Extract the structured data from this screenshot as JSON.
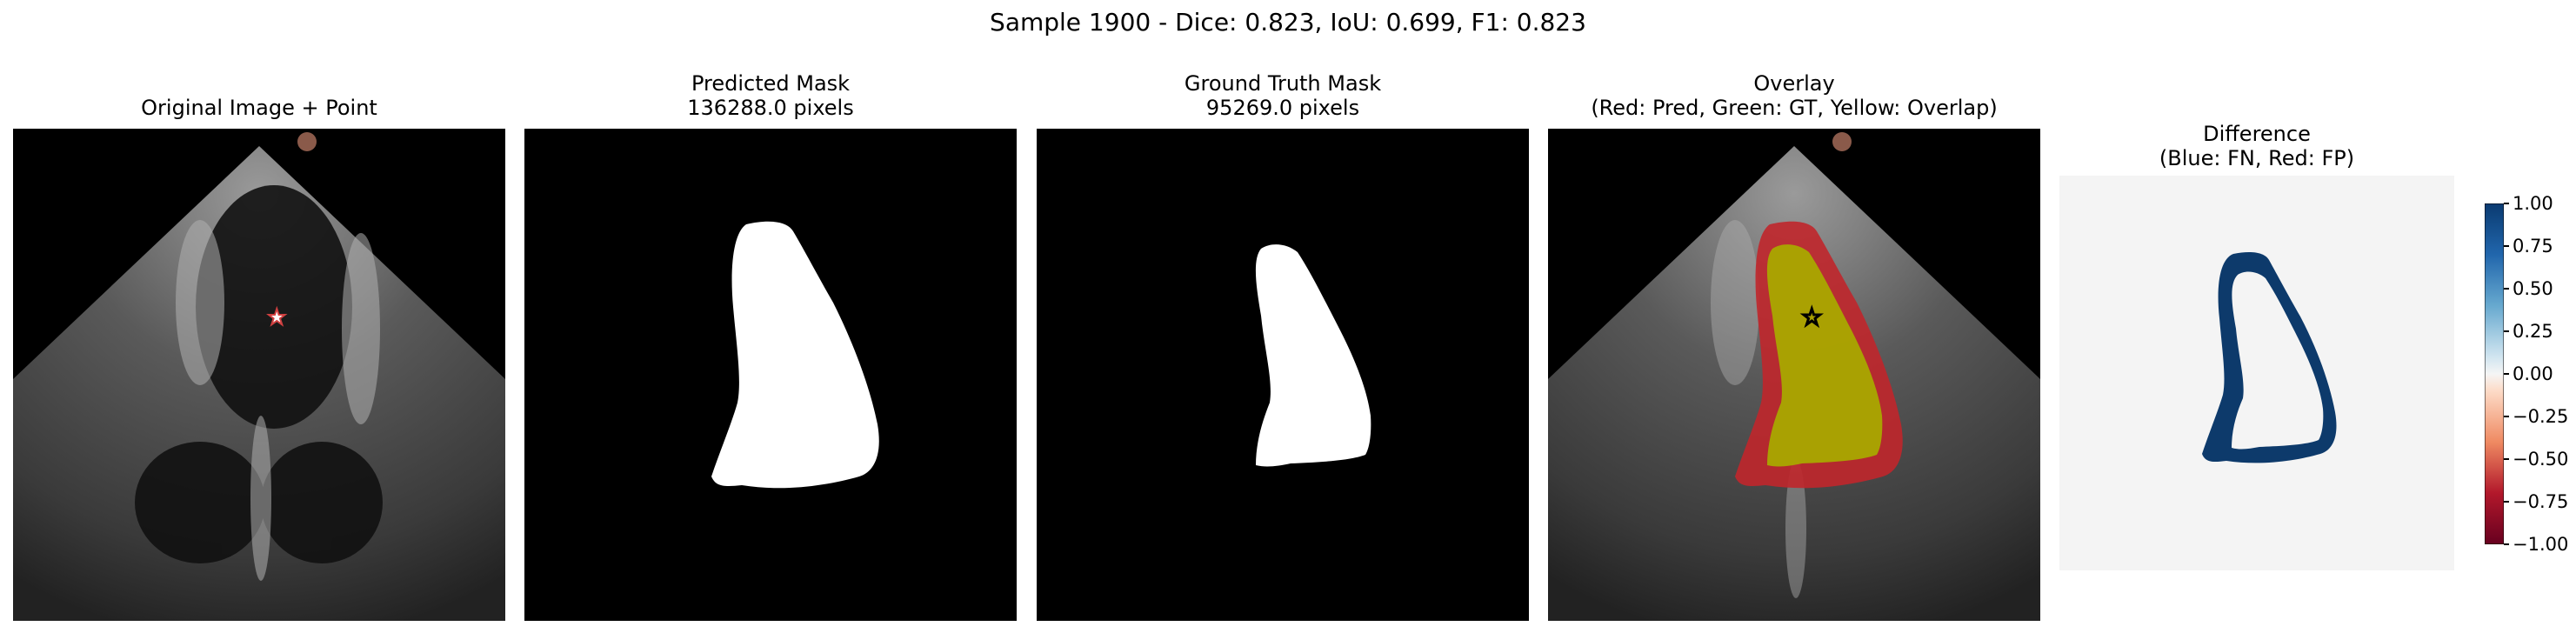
{
  "figure": {
    "suptitle": "Sample 1900 - Dice: 0.823, IoU: 0.699, F1: 0.823"
  },
  "panels": [
    {
      "key": "original",
      "title_lines": [
        "Original Image + Point"
      ]
    },
    {
      "key": "pred",
      "title_lines": [
        "Predicted Mask",
        "136288.0 pixels"
      ]
    },
    {
      "key": "gt",
      "title_lines": [
        "Ground Truth Mask",
        "95269.0 pixels"
      ]
    },
    {
      "key": "overlay",
      "title_lines": [
        "Overlay",
        "(Red: Pred, Green: GT, Yellow: Overlap)"
      ]
    },
    {
      "key": "diff",
      "title_lines": [
        "Difference",
        "(Blue: FN, Red: FP)"
      ]
    }
  ],
  "colorbar": {
    "range": [
      -1.0,
      1.0
    ],
    "ticks": [
      "1.00",
      "0.75",
      "0.50",
      "0.25",
      "0.00",
      "−0.25",
      "−0.50",
      "−0.75",
      "−1.00"
    ],
    "colormap": "RdBu",
    "top_color": "#0a3a70",
    "bottom_color": "#67001f",
    "mid_color": "#f5f5f5"
  },
  "colors": {
    "pred_mask": "#ffffff",
    "background": "#000000",
    "overlap": "#a9a800",
    "pred_only": "#c0262b",
    "fn_blue": "#0d3a6b",
    "diff_bg": "#f4f4f4",
    "point_marker_fill_original": "#ffffff",
    "point_marker_edge_original": "#d04040",
    "point_marker_overlay": "#000000"
  },
  "icons": [
    "star-marker-icon"
  ]
}
